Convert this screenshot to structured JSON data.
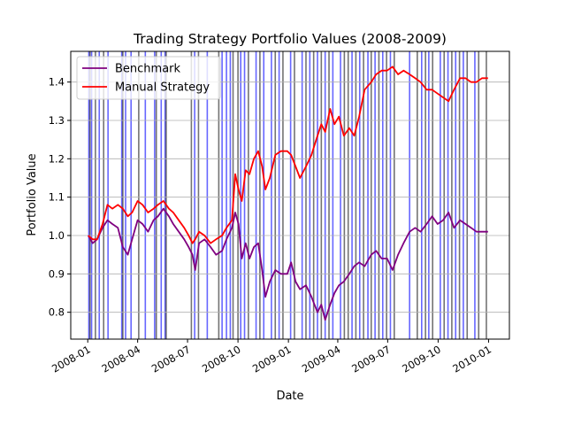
{
  "chart_data": {
    "type": "line",
    "title": "Trading Strategy Portfolio Values (2008-2009)",
    "xlabel": "Date",
    "ylabel": "Portfolio Value",
    "xlim": [
      "2007-12-01",
      "2010-02-08"
    ],
    "ylim": [
      0.73,
      1.48
    ],
    "x_ticks": [
      "2008-01-01",
      "2008-04-01",
      "2008-07-01",
      "2008-10-01",
      "2009-01-01",
      "2009-04-01",
      "2009-07-01",
      "2009-10-01",
      "2010-01-01"
    ],
    "x_tick_labels": [
      "2008-01",
      "2008-04",
      "2008-07",
      "2008-10",
      "2009-01",
      "2009-04",
      "2009-07",
      "2009-10",
      "2010-01"
    ],
    "y_ticks": [
      0.8,
      0.9,
      1.0,
      1.1,
      1.2,
      1.3,
      1.4
    ],
    "y_tick_labels": [
      "0.8",
      "0.9",
      "1.0",
      "1.1",
      "1.2",
      "1.3",
      "1.4"
    ],
    "grid": true,
    "legend_position": "top-left",
    "series": [
      {
        "name": "Benchmark",
        "color": "#800080",
        "points": [
          [
            "2008-01-02",
            1.0
          ],
          [
            "2008-01-10",
            0.98
          ],
          [
            "2008-01-18",
            0.99
          ],
          [
            "2008-01-28",
            1.02
          ],
          [
            "2008-02-06",
            1.04
          ],
          [
            "2008-02-15",
            1.03
          ],
          [
            "2008-02-25",
            1.02
          ],
          [
            "2008-03-05",
            0.97
          ],
          [
            "2008-03-14",
            0.95
          ],
          [
            "2008-03-22",
            0.99
          ],
          [
            "2008-04-01",
            1.04
          ],
          [
            "2008-04-10",
            1.03
          ],
          [
            "2008-04-20",
            1.01
          ],
          [
            "2008-04-30",
            1.04
          ],
          [
            "2008-05-08",
            1.05
          ],
          [
            "2008-05-18",
            1.07
          ],
          [
            "2008-05-28",
            1.05
          ],
          [
            "2008-06-05",
            1.03
          ],
          [
            "2008-06-15",
            1.01
          ],
          [
            "2008-06-25",
            0.99
          ],
          [
            "2008-07-03",
            0.97
          ],
          [
            "2008-07-10",
            0.95
          ],
          [
            "2008-07-15",
            0.91
          ],
          [
            "2008-07-22",
            0.98
          ],
          [
            "2008-08-01",
            0.99
          ],
          [
            "2008-08-12",
            0.97
          ],
          [
            "2008-08-22",
            0.95
          ],
          [
            "2008-09-02",
            0.96
          ],
          [
            "2008-09-10",
            0.99
          ],
          [
            "2008-09-20",
            1.02
          ],
          [
            "2008-09-26",
            1.06
          ],
          [
            "2008-10-02",
            1.03
          ],
          [
            "2008-10-08",
            0.94
          ],
          [
            "2008-10-15",
            0.98
          ],
          [
            "2008-10-22",
            0.94
          ],
          [
            "2008-10-30",
            0.97
          ],
          [
            "2008-11-07",
            0.98
          ],
          [
            "2008-11-14",
            0.91
          ],
          [
            "2008-11-20",
            0.84
          ],
          [
            "2008-11-28",
            0.88
          ],
          [
            "2008-12-08",
            0.91
          ],
          [
            "2008-12-18",
            0.9
          ],
          [
            "2008-12-30",
            0.9
          ],
          [
            "2009-01-06",
            0.93
          ],
          [
            "2009-01-14",
            0.88
          ],
          [
            "2009-01-22",
            0.86
          ],
          [
            "2009-02-02",
            0.87
          ],
          [
            "2009-02-12",
            0.84
          ],
          [
            "2009-02-23",
            0.8
          ],
          [
            "2009-03-02",
            0.82
          ],
          [
            "2009-03-09",
            0.78
          ],
          [
            "2009-03-18",
            0.82
          ],
          [
            "2009-03-26",
            0.85
          ],
          [
            "2009-04-03",
            0.87
          ],
          [
            "2009-04-12",
            0.88
          ],
          [
            "2009-04-22",
            0.9
          ],
          [
            "2009-05-01",
            0.92
          ],
          [
            "2009-05-10",
            0.93
          ],
          [
            "2009-05-20",
            0.92
          ],
          [
            "2009-06-01",
            0.95
          ],
          [
            "2009-06-10",
            0.96
          ],
          [
            "2009-06-20",
            0.94
          ],
          [
            "2009-06-30",
            0.94
          ],
          [
            "2009-07-10",
            0.91
          ],
          [
            "2009-07-20",
            0.95
          ],
          [
            "2009-07-30",
            0.98
          ],
          [
            "2009-08-10",
            1.01
          ],
          [
            "2009-08-20",
            1.02
          ],
          [
            "2009-08-30",
            1.01
          ],
          [
            "2009-09-10",
            1.03
          ],
          [
            "2009-09-20",
            1.05
          ],
          [
            "2009-09-30",
            1.03
          ],
          [
            "2009-10-10",
            1.04
          ],
          [
            "2009-10-20",
            1.06
          ],
          [
            "2009-10-30",
            1.02
          ],
          [
            "2009-11-10",
            1.04
          ],
          [
            "2009-11-20",
            1.03
          ],
          [
            "2009-11-30",
            1.02
          ],
          [
            "2009-12-10",
            1.01
          ],
          [
            "2009-12-20",
            1.01
          ],
          [
            "2009-12-31",
            1.01
          ]
        ]
      },
      {
        "name": "Manual Strategy",
        "color": "#ff0000",
        "points": [
          [
            "2008-01-02",
            1.0
          ],
          [
            "2008-01-10",
            0.99
          ],
          [
            "2008-01-18",
            0.99
          ],
          [
            "2008-01-28",
            1.03
          ],
          [
            "2008-02-06",
            1.08
          ],
          [
            "2008-02-15",
            1.07
          ],
          [
            "2008-02-25",
            1.08
          ],
          [
            "2008-03-05",
            1.07
          ],
          [
            "2008-03-14",
            1.05
          ],
          [
            "2008-03-22",
            1.06
          ],
          [
            "2008-04-01",
            1.09
          ],
          [
            "2008-04-10",
            1.08
          ],
          [
            "2008-04-20",
            1.06
          ],
          [
            "2008-04-30",
            1.07
          ],
          [
            "2008-05-08",
            1.08
          ],
          [
            "2008-05-18",
            1.09
          ],
          [
            "2008-05-28",
            1.07
          ],
          [
            "2008-06-05",
            1.06
          ],
          [
            "2008-06-15",
            1.04
          ],
          [
            "2008-06-25",
            1.02
          ],
          [
            "2008-07-03",
            1.0
          ],
          [
            "2008-07-10",
            0.98
          ],
          [
            "2008-07-15",
            0.99
          ],
          [
            "2008-07-22",
            1.01
          ],
          [
            "2008-08-01",
            1.0
          ],
          [
            "2008-08-12",
            0.98
          ],
          [
            "2008-08-22",
            0.99
          ],
          [
            "2008-09-02",
            1.0
          ],
          [
            "2008-09-10",
            1.02
          ],
          [
            "2008-09-20",
            1.04
          ],
          [
            "2008-09-26",
            1.16
          ],
          [
            "2008-10-02",
            1.12
          ],
          [
            "2008-10-08",
            1.09
          ],
          [
            "2008-10-15",
            1.17
          ],
          [
            "2008-10-22",
            1.16
          ],
          [
            "2008-10-30",
            1.2
          ],
          [
            "2008-11-07",
            1.22
          ],
          [
            "2008-11-14",
            1.18
          ],
          [
            "2008-11-20",
            1.12
          ],
          [
            "2008-11-28",
            1.15
          ],
          [
            "2008-12-08",
            1.21
          ],
          [
            "2008-12-18",
            1.22
          ],
          [
            "2008-12-30",
            1.22
          ],
          [
            "2009-01-06",
            1.21
          ],
          [
            "2009-01-14",
            1.18
          ],
          [
            "2009-01-22",
            1.15
          ],
          [
            "2009-02-02",
            1.18
          ],
          [
            "2009-02-12",
            1.21
          ],
          [
            "2009-02-23",
            1.26
          ],
          [
            "2009-03-02",
            1.29
          ],
          [
            "2009-03-09",
            1.27
          ],
          [
            "2009-03-18",
            1.33
          ],
          [
            "2009-03-26",
            1.29
          ],
          [
            "2009-04-03",
            1.31
          ],
          [
            "2009-04-12",
            1.26
          ],
          [
            "2009-04-22",
            1.28
          ],
          [
            "2009-05-01",
            1.26
          ],
          [
            "2009-05-10",
            1.31
          ],
          [
            "2009-05-20",
            1.38
          ],
          [
            "2009-06-01",
            1.4
          ],
          [
            "2009-06-10",
            1.42
          ],
          [
            "2009-06-20",
            1.43
          ],
          [
            "2009-06-30",
            1.43
          ],
          [
            "2009-07-10",
            1.44
          ],
          [
            "2009-07-20",
            1.42
          ],
          [
            "2009-07-30",
            1.43
          ],
          [
            "2009-08-10",
            1.42
          ],
          [
            "2009-08-20",
            1.41
          ],
          [
            "2009-08-30",
            1.4
          ],
          [
            "2009-09-10",
            1.38
          ],
          [
            "2009-09-20",
            1.38
          ],
          [
            "2009-09-30",
            1.37
          ],
          [
            "2009-10-10",
            1.36
          ],
          [
            "2009-10-20",
            1.35
          ],
          [
            "2009-10-30",
            1.38
          ],
          [
            "2009-11-10",
            1.41
          ],
          [
            "2009-11-20",
            1.41
          ],
          [
            "2009-11-30",
            1.4
          ],
          [
            "2009-12-10",
            1.4
          ],
          [
            "2009-12-20",
            1.41
          ],
          [
            "2009-12-31",
            1.41
          ]
        ]
      }
    ],
    "vertical_markers": {
      "blue": [
        "2008-01-03",
        "2008-01-08",
        "2008-01-22",
        "2008-02-07",
        "2008-03-03",
        "2008-03-10",
        "2008-03-20",
        "2008-04-15",
        "2008-05-02",
        "2008-05-14",
        "2008-05-21",
        "2008-07-14",
        "2008-08-06",
        "2008-09-02",
        "2008-09-10",
        "2008-09-17",
        "2008-10-06",
        "2008-10-13",
        "2008-11-03",
        "2008-11-17",
        "2008-12-01",
        "2008-12-15",
        "2009-01-05",
        "2009-01-26",
        "2009-02-09",
        "2009-02-23",
        "2009-03-09",
        "2009-03-23",
        "2009-04-06",
        "2009-04-27",
        "2009-05-11",
        "2009-05-26",
        "2009-06-08",
        "2009-06-22",
        "2009-07-06",
        "2009-08-10",
        "2009-09-01",
        "2009-09-14",
        "2009-10-05",
        "2009-10-19",
        "2009-11-02",
        "2009-11-16",
        "2009-12-07"
      ],
      "black": [
        "2008-01-05",
        "2008-01-15",
        "2008-01-30",
        "2008-03-05",
        "2008-04-03",
        "2008-05-05",
        "2008-05-23",
        "2008-07-08",
        "2008-07-21",
        "2008-08-27",
        "2008-09-22",
        "2008-10-01",
        "2008-10-20",
        "2008-11-10",
        "2008-12-08",
        "2008-12-22",
        "2009-01-12",
        "2009-02-02",
        "2009-02-16",
        "2009-03-02",
        "2009-03-16",
        "2009-04-13",
        "2009-04-20",
        "2009-05-04",
        "2009-05-18",
        "2009-06-01",
        "2009-06-15",
        "2009-06-29",
        "2009-07-13",
        "2009-08-24",
        "2009-09-08",
        "2009-09-21",
        "2009-10-12",
        "2009-10-26",
        "2009-11-09",
        "2009-11-23",
        "2009-12-14",
        "2009-12-28"
      ]
    }
  }
}
